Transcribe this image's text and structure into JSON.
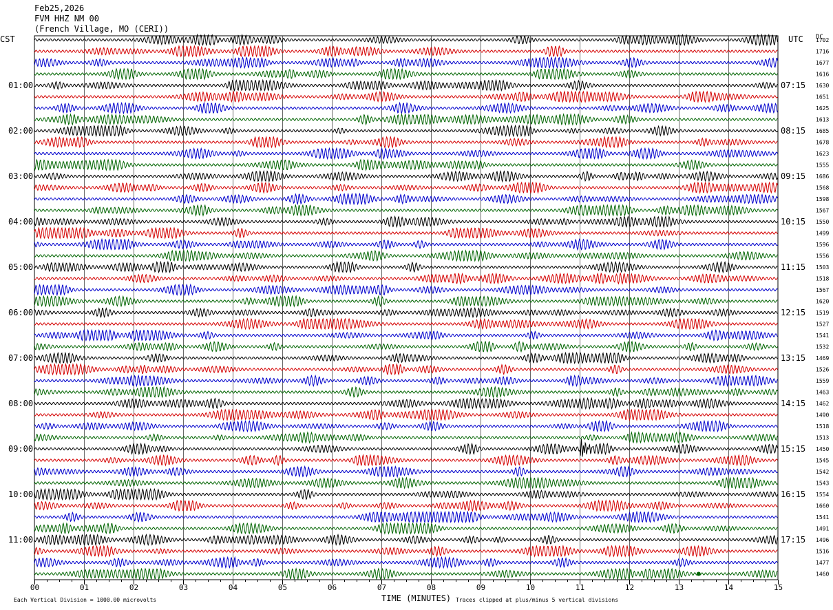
{
  "header": {
    "date": "Feb25,2026",
    "station": "FVM HHZ NM 00",
    "location": "(French Village, MO (CERI))"
  },
  "left_timezone": "CST",
  "right_timezone": "UTC",
  "right_column_header": "DC",
  "footer": {
    "scale_note": "Each Vertical Division = 1000.00 microvolts",
    "xlabel": "TIME (MINUTES)",
    "clip_note": "Traces clipped at plus/minus 5 vertical divisions"
  },
  "chart_data": {
    "type": "line",
    "title": "",
    "xlabel": "TIME (MINUTES)",
    "ylabel": "",
    "x_range": [
      0,
      15
    ],
    "x_ticks": [
      "00",
      "01",
      "02",
      "03",
      "04",
      "05",
      "06",
      "07",
      "08",
      "09",
      "10",
      "11",
      "12",
      "13",
      "14",
      "15"
    ],
    "grid": "vertical lines at each minute",
    "trace_colors": [
      "#000000",
      "#d40000",
      "#0000cc",
      "#006400"
    ],
    "left_hour_labels": [
      "01:00",
      "02:00",
      "03:00",
      "04:00",
      "05:00",
      "06:00",
      "07:00",
      "08:00",
      "09:00",
      "10:00",
      "11:00"
    ],
    "right_hour_labels": [
      "07:15",
      "08:15",
      "09:15",
      "10:15",
      "11:15",
      "12:15",
      "13:15",
      "14:15",
      "15:15",
      "16:15",
      "17:15"
    ],
    "dc_offsets": [
      "1702",
      "1716",
      "1677",
      "1616",
      "1630",
      "1651",
      "1625",
      "1613",
      "1685",
      "1678",
      "1623",
      "1555",
      "1686",
      "1568",
      "1598",
      "1567",
      "1550",
      "1499",
      "1596",
      "1556",
      "1503",
      "1518",
      "1567",
      "1620",
      "1519",
      "1527",
      "1541",
      "1532",
      "1469",
      "1526",
      "1559",
      "1463",
      "1462",
      "1490",
      "1518",
      "1513",
      "1450",
      "1545",
      "1542",
      "1543",
      "1554",
      "1660",
      "1541",
      "1491",
      "1496",
      "1516",
      "1477",
      "1460"
    ],
    "events": [
      {
        "trace_index": 29,
        "minute": 7.25,
        "note": "red burst"
      },
      {
        "trace_index": 36,
        "minute": 11.05,
        "note": "black spike"
      },
      {
        "trace_index": 38,
        "minute": 7.2,
        "note": "blue burst"
      },
      {
        "trace_index": 47,
        "minute": 13.4,
        "note": "green dot"
      }
    ]
  }
}
